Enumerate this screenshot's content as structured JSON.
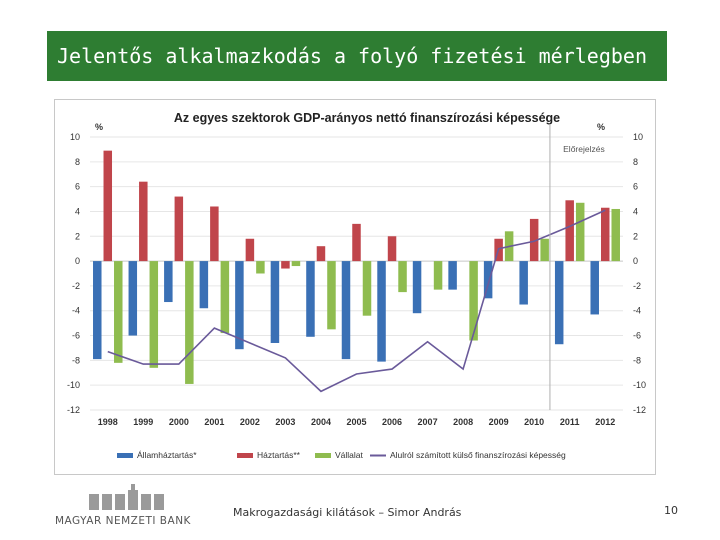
{
  "slide": {
    "title": "Jelentős alkalmazkodás a folyó fizetési mérlegben",
    "footer": "Makrogazdasági kilátások – Simor András",
    "page_number": "10",
    "logo_text": "MAGYAR NEMZETI BANK"
  },
  "colors": {
    "title_bg": "#2e7d32",
    "series_government": "#3a70b5",
    "series_households": "#c0454b",
    "series_companies": "#8fbc4f",
    "series_line": "#6a5a9a"
  },
  "chart_data": {
    "type": "bar",
    "title": "Az egyes szektorok GDP-arányos nettó finanszírozási képessége",
    "ylabel_left": "%",
    "ylabel_right": "%",
    "ylim": [
      -12,
      10
    ],
    "yticks": [
      10,
      8,
      6,
      4,
      2,
      0,
      -2,
      -4,
      -6,
      -8,
      -10,
      -12
    ],
    "categories": [
      "1998",
      "1999",
      "2000",
      "2001",
      "2002",
      "2003",
      "2004",
      "2005",
      "2006",
      "2007",
      "2008",
      "2009",
      "2010",
      "2011",
      "2012"
    ],
    "forecast_label": "Előrejelzés",
    "forecast_from": "2011",
    "grid": true,
    "legend_position": "bottom",
    "series": [
      {
        "name": "Államháztartás*",
        "type": "bar",
        "values": [
          -7.9,
          -6.0,
          -3.3,
          -3.8,
          -7.1,
          -6.6,
          -6.1,
          -7.9,
          -8.1,
          -4.2,
          -2.3,
          -3.0,
          -3.5,
          -6.7,
          -4.3
        ]
      },
      {
        "name": "Háztartás**",
        "type": "bar",
        "values": [
          8.9,
          6.4,
          5.2,
          4.4,
          1.8,
          -0.6,
          1.2,
          3.0,
          2.0,
          0.0,
          0.0,
          1.8,
          3.4,
          4.9,
          4.3
        ]
      },
      {
        "name": "Vállalat",
        "type": "bar",
        "values": [
          -8.2,
          -8.6,
          -9.9,
          -5.8,
          -1.0,
          -0.4,
          -5.5,
          -4.4,
          -2.5,
          -2.3,
          -6.4,
          2.4,
          1.8,
          4.7,
          4.2
        ]
      },
      {
        "name": "Alulról számított külső finanszírozási képesség",
        "type": "line",
        "values": [
          -7.3,
          -8.3,
          -8.3,
          -5.4,
          -6.6,
          -7.8,
          -10.5,
          -9.1,
          -8.7,
          -6.5,
          -8.7,
          1.0,
          1.6,
          2.8,
          4.1
        ]
      }
    ]
  }
}
